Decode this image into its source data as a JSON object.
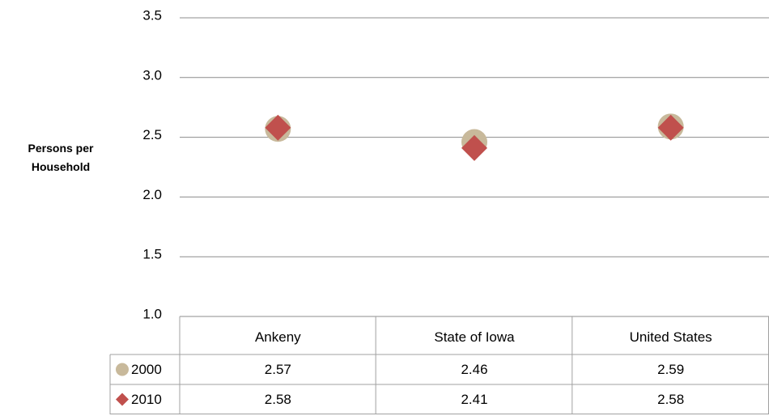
{
  "chart_data": {
    "type": "scatter",
    "y_label": "Persons per Household",
    "categories": [
      "Ankeny",
      "State of Iowa",
      "United States"
    ],
    "series": [
      {
        "name": "2000",
        "color": "#c8b99b",
        "marker": "circle",
        "values": [
          2.57,
          2.46,
          2.59
        ]
      },
      {
        "name": "2010",
        "color": "#c0504d",
        "marker": "diamond",
        "values": [
          2.58,
          2.41,
          2.58
        ]
      }
    ],
    "ylim": [
      1,
      3.5
    ],
    "yticks": [
      {
        "value": 1,
        "label": "1.0"
      },
      1.5,
      {
        "value": 2,
        "label": "2.0"
      },
      2.5,
      {
        "value": 3,
        "label": "3.0"
      },
      3.5
    ],
    "grid": true,
    "data_table": true
  }
}
